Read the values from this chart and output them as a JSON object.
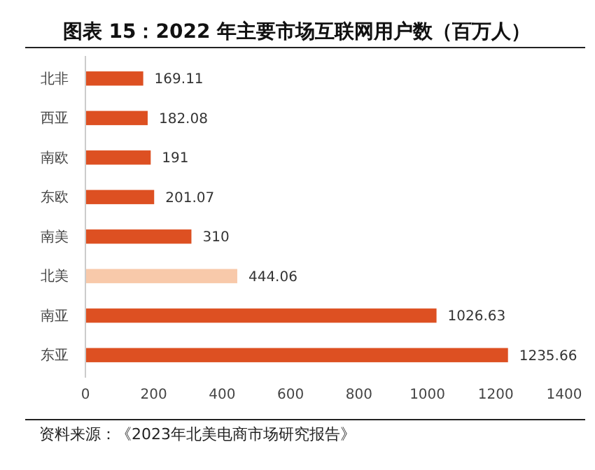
{
  "chart_data": {
    "type": "bar",
    "orientation": "horizontal",
    "title": "图表 15：2022 年主要市场互联网用户数（百万人）",
    "categories": [
      "北非",
      "西亚",
      "南欧",
      "东欧",
      "南美",
      "北美",
      "南亚",
      "东亚"
    ],
    "values": [
      169.11,
      182.08,
      191,
      201.07,
      310,
      444.06,
      1026.63,
      1235.66
    ],
    "colors": [
      "#dd5022",
      "#dd5022",
      "#dd5022",
      "#dd5022",
      "#dd5022",
      "#f8c9aa",
      "#dd5022",
      "#dd5022"
    ],
    "value_labels": [
      "169.11",
      "182.08",
      "191",
      "201.07",
      "310",
      "444.06",
      "1026.63",
      "1235.66"
    ],
    "xlim": [
      0,
      1400
    ],
    "xticks": [
      0,
      200,
      400,
      600,
      800,
      1000,
      1200,
      1400
    ],
    "grid": false,
    "annotations": [
      "资料来源：《2023年北美电商市场研究报告》"
    ]
  }
}
